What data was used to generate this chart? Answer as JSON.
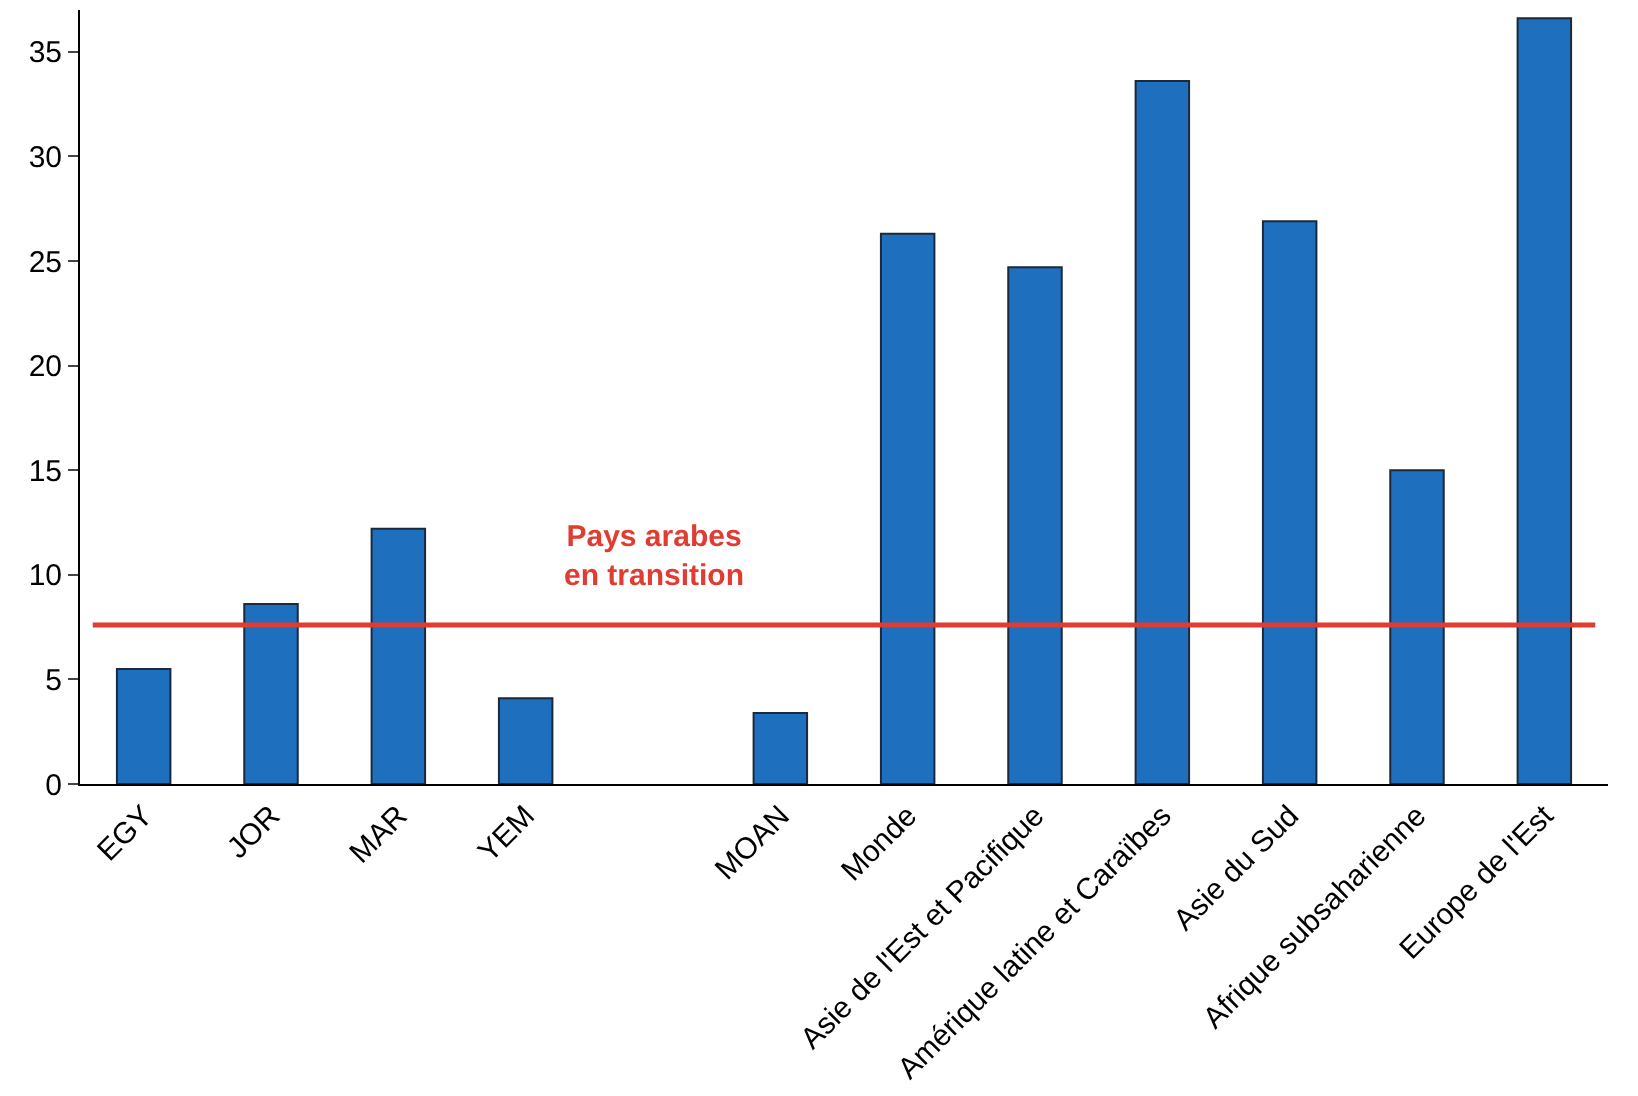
{
  "chart_data": {
    "type": "bar",
    "categories": [
      "EGY",
      "JOR",
      "MAR",
      "YEM",
      null,
      "MOAN",
      "Monde",
      "Asie de l'Est et Pacifique",
      "Amérique latine et Caraïbes",
      "Asie du Sud",
      "Afrique subsaharienne",
      "Europe de l'Est"
    ],
    "values": [
      5.5,
      8.6,
      12.2,
      4.1,
      null,
      3.4,
      26.3,
      24.7,
      33.6,
      26.9,
      15.0,
      36.6
    ],
    "color": "#1f6fbf",
    "ylim": [
      0,
      37
    ],
    "yticks": [
      0,
      5,
      10,
      15,
      20,
      25,
      30,
      35
    ],
    "ref_lines": [
      {
        "axis": "y",
        "value": 7.6,
        "label": "Pays arabes\nen transition",
        "color": "#e03c31"
      }
    ]
  }
}
